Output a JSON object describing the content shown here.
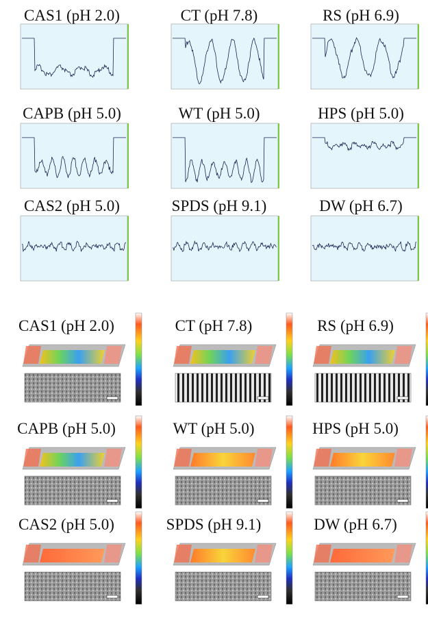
{
  "profile_panels": [
    {
      "title": "CAS1 (pH 2.0)"
    },
    {
      "title": "CT (pH 7.8)"
    },
    {
      "title": "RS (pH 6.9)"
    },
    {
      "title": "CAPB (pH 5.0)"
    },
    {
      "title": "WT (pH 5.0)"
    },
    {
      "title": "HPS (pH 5.0)"
    },
    {
      "title": "CAS2 (pH 5.0)"
    },
    {
      "title": "SPDS (pH 9.1)"
    },
    {
      "title": "DW (pH 6.7)"
    }
  ],
  "surface_panels": [
    {
      "title": "CAS1 (pH 2.0)"
    },
    {
      "title": "CT (pH 7.8)"
    },
    {
      "title": "RS (pH 6.9)"
    },
    {
      "title": "CAPB (pH 5.0)"
    },
    {
      "title": "WT (pH 5.0)"
    },
    {
      "title": "HPS (pH 5.0)"
    },
    {
      "title": "CAS2 (pH 5.0)"
    },
    {
      "title": "SPDS (pH 9.1)"
    },
    {
      "title": "DW (pH 6.7)"
    }
  ]
}
